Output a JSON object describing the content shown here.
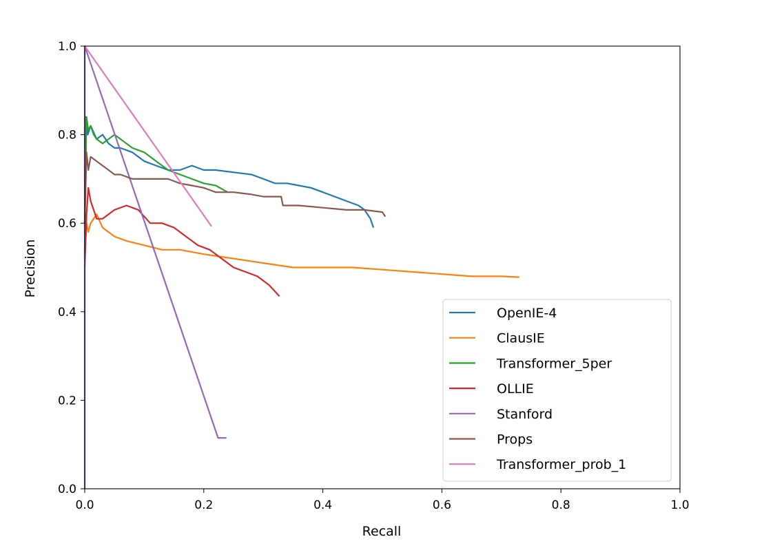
{
  "chart_data": {
    "type": "line",
    "title": "",
    "xlabel": "Recall",
    "ylabel": "Precision",
    "xlim": [
      0.0,
      1.0
    ],
    "ylim": [
      0.0,
      1.0
    ],
    "xticks": [
      "0.0",
      "0.2",
      "0.4",
      "0.6",
      "0.8",
      "1.0"
    ],
    "yticks": [
      "0.0",
      "0.2",
      "0.4",
      "0.6",
      "0.8",
      "1.0"
    ],
    "grid": false,
    "legend_position": "lower-right",
    "series": [
      {
        "name": "OpenIE-4",
        "color": "#1f77b4",
        "x": [
          0.0,
          0.002,
          0.005,
          0.01,
          0.02,
          0.03,
          0.04,
          0.05,
          0.06,
          0.08,
          0.1,
          0.12,
          0.14,
          0.16,
          0.18,
          0.2,
          0.22,
          0.25,
          0.28,
          0.3,
          0.32,
          0.34,
          0.36,
          0.38,
          0.4,
          0.42,
          0.44,
          0.46,
          0.47,
          0.48,
          0.485
        ],
        "y": [
          0.6,
          0.84,
          0.8,
          0.82,
          0.79,
          0.8,
          0.78,
          0.77,
          0.77,
          0.76,
          0.74,
          0.73,
          0.72,
          0.72,
          0.73,
          0.72,
          0.72,
          0.715,
          0.71,
          0.7,
          0.69,
          0.69,
          0.685,
          0.68,
          0.67,
          0.66,
          0.65,
          0.64,
          0.63,
          0.61,
          0.59
        ]
      },
      {
        "name": "ClausIE",
        "color": "#ff7f0e",
        "x": [
          0.0,
          0.003,
          0.006,
          0.01,
          0.02,
          0.03,
          0.05,
          0.07,
          0.1,
          0.13,
          0.16,
          0.2,
          0.25,
          0.3,
          0.35,
          0.4,
          0.45,
          0.5,
          0.55,
          0.6,
          0.65,
          0.7,
          0.73
        ],
        "y": [
          0.52,
          0.6,
          0.58,
          0.6,
          0.62,
          0.59,
          0.57,
          0.56,
          0.55,
          0.54,
          0.54,
          0.53,
          0.52,
          0.51,
          0.5,
          0.5,
          0.5,
          0.495,
          0.49,
          0.485,
          0.48,
          0.48,
          0.478
        ]
      },
      {
        "name": "Transformer_5per",
        "color": "#2ca02c",
        "x": [
          0.0,
          0.003,
          0.006,
          0.01,
          0.015,
          0.02,
          0.03,
          0.04,
          0.05,
          0.06,
          0.08,
          0.1,
          0.12,
          0.14,
          0.16,
          0.18,
          0.2,
          0.22,
          0.24
        ],
        "y": [
          0.6,
          0.84,
          0.81,
          0.82,
          0.8,
          0.79,
          0.78,
          0.79,
          0.8,
          0.79,
          0.77,
          0.76,
          0.74,
          0.72,
          0.71,
          0.7,
          0.69,
          0.685,
          0.67
        ]
      },
      {
        "name": "OLLIE",
        "color": "#d62728",
        "x": [
          0.0,
          0.003,
          0.006,
          0.01,
          0.015,
          0.02,
          0.03,
          0.05,
          0.07,
          0.09,
          0.11,
          0.13,
          0.15,
          0.17,
          0.19,
          0.21,
          0.23,
          0.25,
          0.27,
          0.29,
          0.31,
          0.327
        ],
        "y": [
          0.5,
          0.62,
          0.68,
          0.65,
          0.63,
          0.61,
          0.61,
          0.63,
          0.64,
          0.63,
          0.6,
          0.6,
          0.59,
          0.57,
          0.55,
          0.54,
          0.52,
          0.5,
          0.49,
          0.48,
          0.46,
          0.435
        ]
      },
      {
        "name": "Stanford",
        "color": "#9467bd",
        "x": [
          0.0,
          0.0,
          0.224,
          0.23,
          0.238
        ],
        "y": [
          0.0,
          1.0,
          0.115,
          0.115,
          0.115
        ]
      },
      {
        "name": "Props",
        "color": "#8c564b",
        "x": [
          0.0,
          0.003,
          0.006,
          0.01,
          0.02,
          0.03,
          0.04,
          0.05,
          0.06,
          0.08,
          0.1,
          0.12,
          0.14,
          0.16,
          0.18,
          0.2,
          0.22,
          0.25,
          0.28,
          0.3,
          0.33,
          0.333,
          0.36,
          0.4,
          0.44,
          0.47,
          0.5,
          0.505
        ],
        "y": [
          0.6,
          0.76,
          0.72,
          0.75,
          0.74,
          0.73,
          0.72,
          0.71,
          0.71,
          0.7,
          0.7,
          0.7,
          0.7,
          0.69,
          0.685,
          0.68,
          0.67,
          0.67,
          0.665,
          0.66,
          0.66,
          0.64,
          0.64,
          0.635,
          0.63,
          0.63,
          0.625,
          0.615
        ]
      },
      {
        "name": "Transformer_prob_1",
        "color": "#e377c2",
        "x": [
          0.0,
          0.213
        ],
        "y": [
          1.0,
          0.593
        ]
      }
    ]
  }
}
